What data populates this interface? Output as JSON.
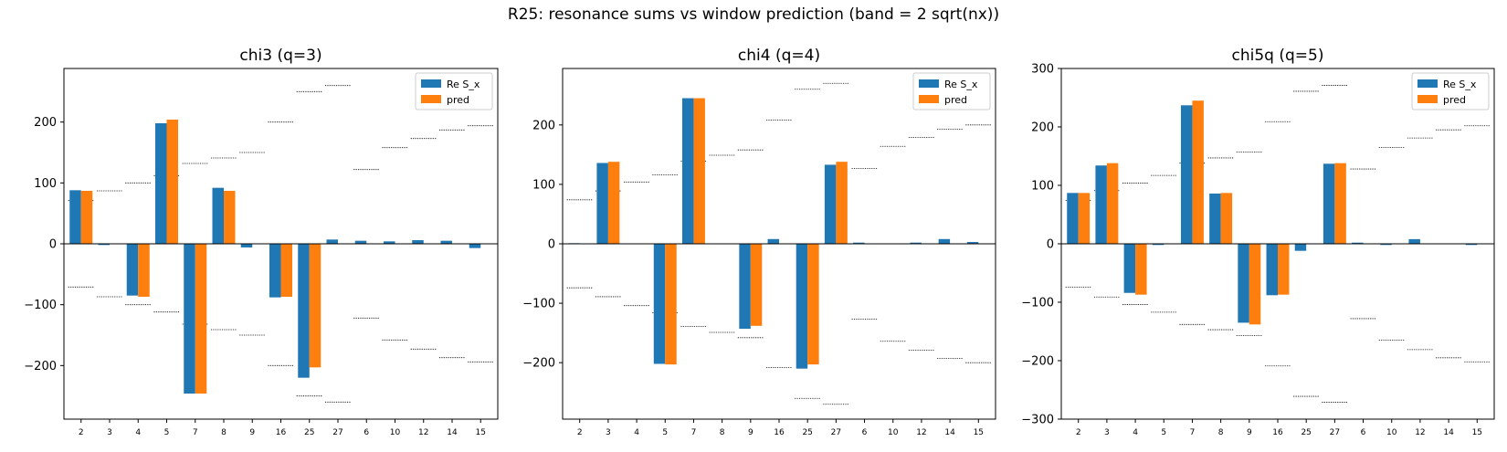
{
  "suptitle": "R25: resonance sums vs window prediction (band = 2 sqrt(nx))",
  "colors": {
    "re": "#1f77b4",
    "pred": "#ff7f0e",
    "band": "#000000"
  },
  "chart_data": [
    {
      "type": "bar",
      "title": "chi3 (q=3)",
      "categories": [
        "2",
        "3",
        "4",
        "5",
        "7",
        "8",
        "9",
        "16",
        "25",
        "27",
        "6",
        "10",
        "12",
        "14",
        "15"
      ],
      "ylim": [
        -288,
        288
      ],
      "yticks": [
        -200,
        -100,
        0,
        100,
        200
      ],
      "legend": {
        "placement": "top-right",
        "entries": [
          "Re S_x",
          "pred"
        ]
      },
      "series": [
        {
          "name": "Re S_x",
          "values": [
            88,
            -2,
            -85,
            198,
            -246,
            92,
            -6,
            -88,
            -220,
            7,
            5,
            4,
            6,
            5,
            -7
          ]
        },
        {
          "name": "pred",
          "values": [
            87,
            0,
            -87,
            204,
            -246,
            87,
            0,
            -87,
            -203,
            0,
            0,
            0,
            0,
            0,
            0
          ]
        }
      ],
      "band": [
        71,
        87,
        100,
        112,
        132,
        141,
        150,
        200,
        250,
        260,
        122,
        158,
        173,
        187,
        194
      ]
    },
    {
      "type": "bar",
      "title": "chi4 (q=4)",
      "categories": [
        "2",
        "3",
        "4",
        "5",
        "7",
        "8",
        "9",
        "16",
        "25",
        "27",
        "6",
        "10",
        "12",
        "14",
        "15"
      ],
      "ylim": [
        -295,
        295
      ],
      "yticks": [
        -200,
        -100,
        0,
        100,
        200
      ],
      "legend": {
        "placement": "top-right",
        "entries": [
          "Re S_x",
          "pred"
        ]
      },
      "series": [
        {
          "name": "Re S_x",
          "values": [
            1,
            136,
            0,
            -202,
            245,
            0,
            -143,
            8,
            -210,
            133,
            2,
            0,
            2,
            8,
            3
          ]
        },
        {
          "name": "pred",
          "values": [
            0,
            138,
            0,
            -203,
            245,
            0,
            -138,
            0,
            -203,
            138,
            0,
            0,
            0,
            0,
            0
          ]
        }
      ],
      "band": [
        74,
        89,
        104,
        116,
        139,
        149,
        158,
        208,
        260,
        270,
        127,
        164,
        179,
        193,
        200
      ]
    },
    {
      "type": "bar",
      "title": "chi5q (q=5)",
      "categories": [
        "2",
        "3",
        "4",
        "5",
        "7",
        "8",
        "9",
        "16",
        "25",
        "27",
        "6",
        "10",
        "12",
        "14",
        "15"
      ],
      "ylim": [
        -300,
        300
      ],
      "yticks": [
        -300,
        -200,
        -100,
        0,
        100,
        200,
        300
      ],
      "legend": {
        "placement": "top-right",
        "entries": [
          "Re S_x",
          "pred"
        ]
      },
      "series": [
        {
          "name": "Re S_x",
          "values": [
            87,
            134,
            -84,
            -2,
            237,
            86,
            -135,
            -88,
            -12,
            137,
            2,
            -2,
            8,
            0,
            -2
          ]
        },
        {
          "name": "pred",
          "values": [
            87,
            138,
            -87,
            0,
            245,
            87,
            -138,
            -87,
            0,
            138,
            0,
            0,
            0,
            0,
            0
          ]
        }
      ],
      "band": [
        74,
        91,
        104,
        117,
        138,
        147,
        157,
        209,
        261,
        271,
        128,
        165,
        181,
        195,
        202
      ]
    }
  ]
}
